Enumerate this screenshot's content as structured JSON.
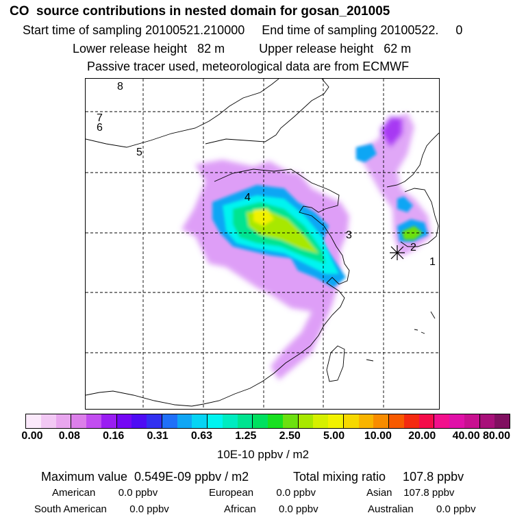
{
  "header": {
    "title": "CO  source contributions in nested domain for gosan_201005",
    "start_time": "Start time of sampling 20100521.210000",
    "end_time": "End time of sampling 20100522.     0",
    "lower_height": "Lower release height   82 m",
    "upper_height": "Upper release height   62 m",
    "note": "Passive tracer used, meteorological data are from ECMWF"
  },
  "map": {
    "trajectory_labels": [
      "8",
      "7",
      "6",
      "5",
      "4",
      "3",
      "2",
      "1"
    ]
  },
  "colorbar": {
    "colors": [
      "#fbe9fb",
      "#f2c8f4",
      "#e8a6ee",
      "#dc7fea",
      "#c24ef0",
      "#9a1ef2",
      "#7408f4",
      "#4e0cf4",
      "#3230f0",
      "#2070f8",
      "#10a6f4",
      "#06d4f4",
      "#00f4f0",
      "#00ecc0",
      "#00e490",
      "#00e060",
      "#18e020",
      "#6ce010",
      "#a8e800",
      "#d6f000",
      "#f2f200",
      "#f6d800",
      "#f8b400",
      "#f88c00",
      "#f85a00",
      "#f42a10",
      "#f40c4a",
      "#f2108c",
      "#e010a8",
      "#c81090",
      "#a8107a",
      "#801060"
    ],
    "tick_labels": [
      "0.00",
      "0.08",
      "0.16",
      "0.31",
      "0.63",
      "1.25",
      "2.50",
      "5.00",
      "10.00",
      "20.00",
      "40.00",
      "80.00"
    ],
    "unit": "10E-10 ppbv / m2"
  },
  "stats": {
    "max_value": "Maximum value  0.549E-09 ppbv / m2",
    "total_mixing": "Total mixing ratio     107.8 ppbv",
    "american": "American        0.0 ppbv",
    "european": "European        0.0 ppbv",
    "asian": "Asian    107.8 ppbv",
    "south_american": "South American        0.0 ppbv",
    "african": "African        0.0 ppbv",
    "australian": "Australian        0.0 ppbv"
  }
}
